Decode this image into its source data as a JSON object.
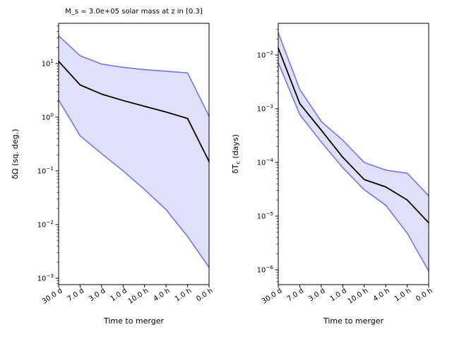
{
  "figure": {
    "background": "#ffffff"
  },
  "colors": {
    "band_fill": "#e0e0f9",
    "band_edge": "#7b7bea",
    "median_line": "#000000",
    "frame": "#000000",
    "text": "#000000"
  },
  "chart_data": [
    {
      "type": "line",
      "title": "M_s = 3.0e+05 solar mass at z in [0.3]",
      "xlabel": "Time to merger",
      "ylabel": "δΩ (sq. deg.)",
      "yscale": "log",
      "grid": false,
      "categories": [
        "30.0 d",
        "7.0 d",
        "3.0 d",
        "1.0 d",
        "10.0 h",
        "4.0 h",
        "1.0 h",
        "0.0 h"
      ],
      "ytick_exponents": [
        1,
        0,
        -1,
        -2,
        -3
      ],
      "ylim_log10": [
        -3.118,
        1.75
      ],
      "series": [
        {
          "name": "median",
          "values": [
            11,
            4.0,
            2.7,
            2.05,
            1.6,
            1.25,
            0.95,
            0.15
          ]
        },
        {
          "name": "band_upper",
          "values": [
            33,
            14,
            9.8,
            8.5,
            7.7,
            7.2,
            6.7,
            1.05
          ]
        },
        {
          "name": "band_lower",
          "values": [
            2.1,
            0.45,
            0.21,
            0.1,
            0.045,
            0.019,
            0.006,
            0.0016
          ]
        }
      ]
    },
    {
      "type": "line",
      "title": "",
      "xlabel": "Time to merger",
      "ylabel": "δT_c (days)",
      "ylabel_prefix": "δT",
      "ylabel_sub": "c",
      "ylabel_suffix": " (days)",
      "yscale": "log",
      "grid": false,
      "categories": [
        "30.0 d",
        "7.0 d",
        "3.0 d",
        "1.0 d",
        "10.0 h",
        "4.0 h",
        "1.0 h",
        "0.0 h"
      ],
      "ytick_exponents": [
        -2,
        -3,
        -4,
        -5,
        -6
      ],
      "ylim_log10": [
        -6.276,
        -1.408
      ],
      "series": [
        {
          "name": "median",
          "values": [
            0.0135,
            0.00125,
            0.0004,
            0.000125,
            4.8e-05,
            3.5e-05,
            2e-05,
            7.5e-06
          ]
        },
        {
          "name": "band_upper",
          "values": [
            0.026,
            0.0023,
            0.00058,
            0.00026,
            0.0001,
            7.2e-05,
            6.3e-05,
            2.4e-05
          ]
        },
        {
          "name": "band_lower",
          "values": [
            0.0072,
            0.00078,
            0.00024,
            8e-05,
            3.1e-05,
            1.6e-05,
            4.8e-06,
            9.5e-07
          ]
        }
      ]
    }
  ]
}
